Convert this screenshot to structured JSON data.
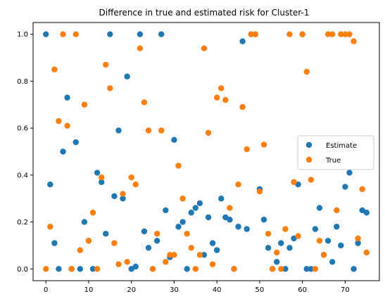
{
  "chart_data": {
    "type": "scatter",
    "title": "Difference in true and estimated risk for Cluster-1",
    "xlabel": "",
    "ylabel": "",
    "xlim": [
      -3,
      78
    ],
    "ylim": [
      -0.05,
      1.05
    ],
    "xticks": [
      0,
      10,
      20,
      30,
      40,
      50,
      60,
      70
    ],
    "yticks": [
      0.0,
      0.2,
      0.4,
      0.6,
      0.8,
      1.0
    ],
    "xtick_labels": [
      "0",
      "10",
      "20",
      "30",
      "40",
      "50",
      "60",
      "70"
    ],
    "ytick_labels": [
      "0.0",
      "0.2",
      "0.4",
      "0.6",
      "0.8",
      "1.0"
    ],
    "grid": false,
    "legend_position": "center-right",
    "x": [
      0,
      1,
      2,
      3,
      4,
      5,
      6,
      7,
      8,
      9,
      10,
      11,
      12,
      13,
      14,
      15,
      16,
      17,
      18,
      19,
      20,
      21,
      22,
      23,
      24,
      25,
      26,
      27,
      28,
      29,
      30,
      31,
      32,
      33,
      34,
      35,
      36,
      37,
      38,
      39,
      40,
      41,
      42,
      43,
      44,
      45,
      46,
      47,
      48,
      49,
      50,
      51,
      52,
      53,
      54,
      55,
      56,
      57,
      58,
      59,
      60,
      61,
      62,
      63,
      64,
      65,
      66,
      67,
      68,
      69,
      70,
      71,
      72,
      73,
      74,
      75
    ],
    "series": [
      {
        "name": "Estimate",
        "color": "#1f77b4",
        "values": [
          1.0,
          0.36,
          0.11,
          0.0,
          0.5,
          0.73,
          0.0,
          0.54,
          0.0,
          0.2,
          0.12,
          0.0,
          0.41,
          0.37,
          0.15,
          1.0,
          0.31,
          0.59,
          0.3,
          0.82,
          0.0,
          0.01,
          1.0,
          0.16,
          0.09,
          0.0,
          0.12,
          1.0,
          0.25,
          0.05,
          0.55,
          0.18,
          0.2,
          0.0,
          0.24,
          0.26,
          0.28,
          0.06,
          0.22,
          0.11,
          0.08,
          0.3,
          0.22,
          0.21,
          0.0,
          0.18,
          0.97,
          0.17,
          1.0,
          1.0,
          0.34,
          0.21,
          0.09,
          0.0,
          0.03,
          0.11,
          0.0,
          0.09,
          0.13,
          0.36,
          1.0,
          0.0,
          0.0,
          0.17,
          0.26,
          0.06,
          0.12,
          0.03,
          0.18,
          0.1,
          0.35,
          0.41,
          0.0,
          0.11,
          0.25,
          0.24
        ]
      },
      {
        "name": "True",
        "color": "#ff7f0e",
        "values": [
          0.0,
          0.18,
          0.85,
          0.63,
          1.0,
          0.61,
          0.0,
          1.0,
          0.08,
          0.7,
          0.12,
          0.24,
          0.0,
          0.39,
          0.87,
          0.77,
          0.11,
          0.02,
          0.32,
          0.03,
          0.39,
          0.36,
          0.94,
          0.71,
          0.59,
          0.0,
          0.15,
          0.59,
          0.03,
          0.06,
          0.06,
          0.44,
          0.3,
          0.15,
          0.09,
          0.0,
          0.06,
          0.94,
          0.58,
          0.02,
          0.73,
          0.77,
          0.72,
          0.26,
          0.0,
          0.36,
          0.69,
          0.51,
          1.0,
          1.0,
          0.33,
          0.53,
          0.15,
          0.0,
          0.07,
          0.0,
          0.17,
          1.0,
          0.37,
          0.14,
          1.0,
          0.84,
          0.38,
          0.0,
          0.12,
          0.06,
          1.0,
          1.0,
          0.25,
          1.0,
          1.0,
          1.0,
          0.97,
          0.13,
          0.34,
          0.07
        ]
      }
    ]
  }
}
